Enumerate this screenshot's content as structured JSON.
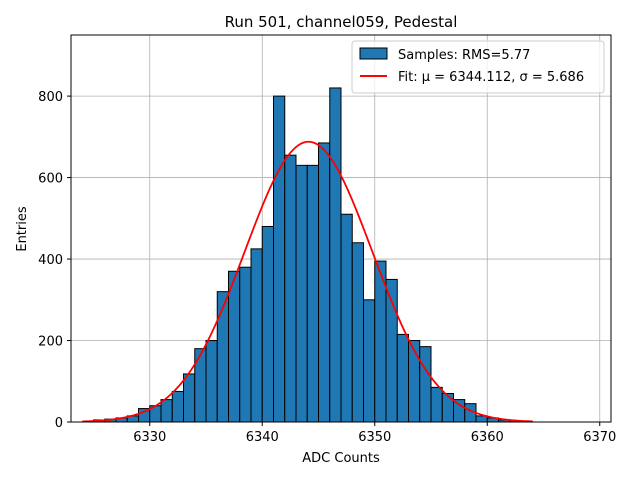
{
  "chart_data": {
    "type": "bar",
    "title": "Run 501, channel059, Pedestal",
    "xlabel": "ADC Counts",
    "ylabel": "Entries",
    "xlim": [
      6323,
      6371
    ],
    "ylim": [
      0,
      950
    ],
    "xticks": [
      6330,
      6340,
      6350,
      6360,
      6370
    ],
    "yticks": [
      0,
      200,
      400,
      600,
      800
    ],
    "grid": true,
    "legend_position": "top-right",
    "bar_color": "#1f77b4",
    "fit_color": "#ff0000",
    "histogram": {
      "name": "Samples: RMS=5.77",
      "bin_edges": [
        6324,
        6325,
        6326,
        6327,
        6328,
        6329,
        6330,
        6331,
        6332,
        6333,
        6334,
        6335,
        6336,
        6337,
        6338,
        6339,
        6340,
        6341,
        6342,
        6343,
        6344,
        6345,
        6346,
        6347,
        6348,
        6349,
        6350,
        6351,
        6352,
        6353,
        6354,
        6355,
        6356,
        6357,
        6358,
        6359,
        6360,
        6361,
        6362,
        6363,
        6364,
        6365,
        6366,
        6367,
        6368
      ],
      "counts": [
        0,
        5,
        7,
        10,
        15,
        33,
        40,
        55,
        75,
        118,
        180,
        200,
        320,
        370,
        380,
        425,
        480,
        800,
        655,
        630,
        630,
        685,
        820,
        510,
        440,
        300,
        395,
        350,
        215,
        200,
        185,
        85,
        70,
        55,
        45,
        15,
        10,
        5,
        3,
        2,
        0,
        0,
        0,
        0
      ]
    },
    "fit": {
      "name": "Fit: μ = 6344.112, σ = 5.686",
      "type": "gaussian",
      "mu": 6344.112,
      "sigma": 5.686,
      "amplitude": 688,
      "x_range": [
        6324,
        6364
      ]
    }
  }
}
